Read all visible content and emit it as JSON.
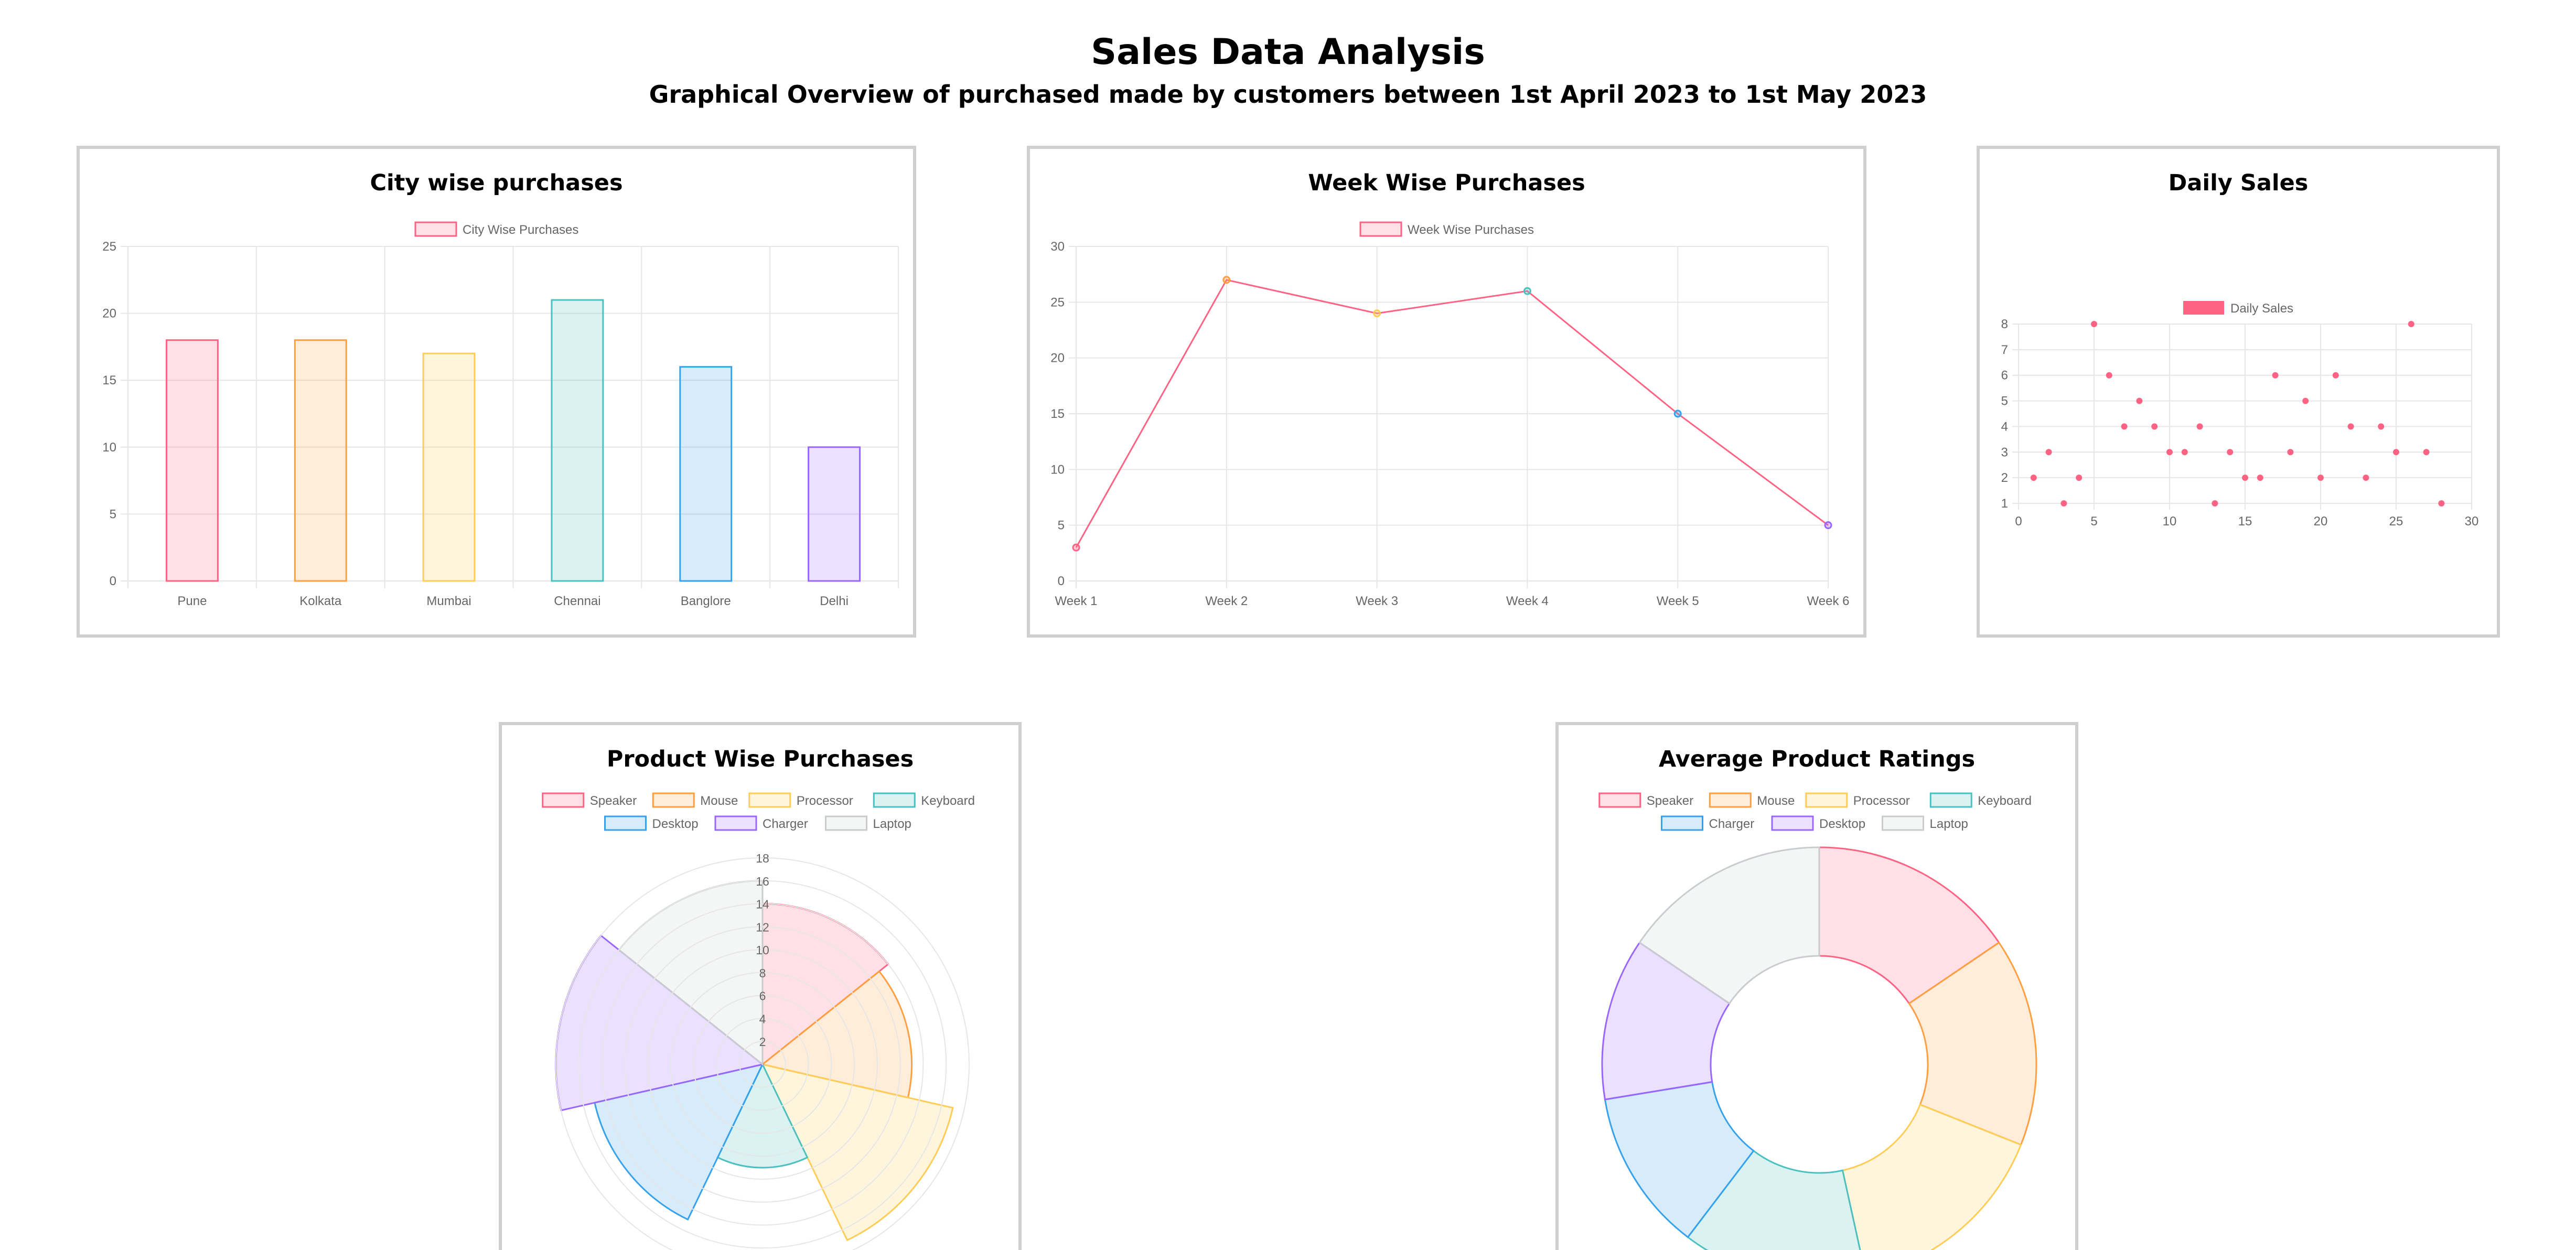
{
  "page": {
    "title": "Sales Data Analysis",
    "subtitle": "Graphical Overview of purchased made by customers between 1st April 2023 to 1st May 2023"
  },
  "chart_data": [
    {
      "id": "city",
      "type": "bar",
      "title": "City wise purchases",
      "legend": [
        "City Wise Purchases"
      ],
      "legend_position": "top",
      "grid": true,
      "categories": [
        "Pune",
        "Kolkata",
        "Mumbai",
        "Chennai",
        "Banglore",
        "Delhi"
      ],
      "series": [
        {
          "name": "City Wise Purchases",
          "values": [
            18,
            18,
            17,
            21,
            16,
            10
          ]
        }
      ],
      "ylim": [
        0,
        25
      ],
      "yticks": [
        0,
        5,
        10,
        15,
        20,
        25
      ],
      "ytick_labels": [
        "0",
        "5",
        "10",
        "15",
        "20",
        "25"
      ],
      "colors": [
        "#ff6384",
        "#ff9f40",
        "#ffcd56",
        "#4bc0c0",
        "#36a2eb",
        "#9966ff"
      ]
    },
    {
      "id": "week",
      "type": "line",
      "title": "Week Wise Purchases",
      "legend": [
        "Week Wise Purchases"
      ],
      "legend_position": "top",
      "grid": true,
      "categories": [
        "Week 1",
        "Week 2",
        "Week 3",
        "Week 4",
        "Week 5",
        "Week 6"
      ],
      "series": [
        {
          "name": "Week Wise Purchases",
          "values": [
            3,
            27,
            24,
            26,
            15,
            5
          ]
        }
      ],
      "ylim": [
        0,
        30
      ],
      "yticks": [
        0,
        5,
        10,
        15,
        20,
        25,
        30
      ],
      "ytick_labels": [
        "0",
        "5",
        "10",
        "15",
        "20",
        "25",
        "30"
      ],
      "line_color": "#ff6384",
      "point_colors": [
        "#ff6384",
        "#ff9f40",
        "#ffcd56",
        "#4bc0c0",
        "#36a2eb",
        "#9966ff"
      ]
    },
    {
      "id": "daily",
      "type": "scatter",
      "title": "Daily Sales",
      "legend": [
        "Daily Sales"
      ],
      "legend_position": "top",
      "grid": true,
      "series": [
        {
          "name": "Daily Sales",
          "x": [
            1,
            2,
            3,
            4,
            5,
            6,
            7,
            8,
            9,
            10,
            11,
            12,
            13,
            14,
            15,
            16,
            17,
            18,
            19,
            20,
            21,
            22,
            23,
            24,
            25,
            26,
            27,
            28
          ],
          "y": [
            2,
            3,
            1,
            2,
            8,
            6,
            4,
            5,
            4,
            3,
            3,
            4,
            1,
            3,
            2,
            2,
            6,
            3,
            5,
            2,
            6,
            4,
            2,
            4,
            3,
            8,
            3,
            1
          ]
        }
      ],
      "xlim": [
        0,
        30
      ],
      "ylim": [
        1,
        8
      ],
      "xticks": [
        0,
        5,
        10,
        15,
        20,
        25,
        30
      ],
      "xtick_labels": [
        "0",
        "5",
        "10",
        "15",
        "20",
        "25",
        "30"
      ],
      "yticks": [
        1,
        2,
        3,
        4,
        5,
        6,
        7,
        8
      ],
      "ytick_labels": [
        "1",
        "2",
        "3",
        "4",
        "5",
        "6",
        "7",
        "8"
      ],
      "color": "#ff6384"
    },
    {
      "id": "product",
      "type": "polarArea",
      "title": "Product Wise Purchases",
      "legend_position": "top",
      "labels": [
        "Speaker",
        "Mouse",
        "Processor",
        "Keyboard",
        "Desktop",
        "Charger",
        "Laptop"
      ],
      "values": [
        14,
        13,
        17,
        9,
        15,
        18,
        16
      ],
      "rlim": [
        0,
        18
      ],
      "rticks": [
        2,
        4,
        6,
        8,
        10,
        12,
        14,
        16,
        18
      ],
      "rtick_labels": [
        "2",
        "4",
        "6",
        "8",
        "10",
        "12",
        "14",
        "16",
        "18"
      ],
      "colors": [
        "#ff6384",
        "#ff9f40",
        "#ffcd56",
        "#4bc0c0",
        "#36a2eb",
        "#9966ff",
        "#c9cbcf"
      ]
    },
    {
      "id": "rating",
      "type": "pie",
      "variant": "doughnut",
      "title": "Average Product Ratings",
      "legend_position": "top",
      "labels": [
        "Speaker",
        "Mouse",
        "Processor",
        "Keyboard",
        "Charger",
        "Desktop",
        "Laptop"
      ],
      "values": [
        4.5,
        4.5,
        4.5,
        4.0,
        3.5,
        3.5,
        4.5
      ],
      "colors": [
        "#ff6384",
        "#ff9f40",
        "#ffcd56",
        "#4bc0c0",
        "#36a2eb",
        "#9966ff",
        "#c9cbcf"
      ]
    }
  ]
}
